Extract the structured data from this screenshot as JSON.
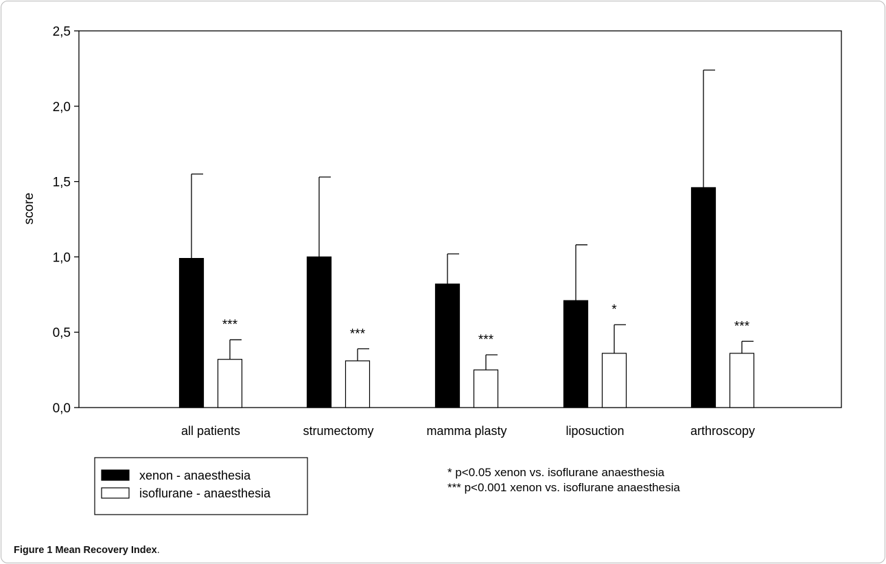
{
  "figure": {
    "caption_label": "Figure 1",
    "caption_title": "Mean Recovery Index",
    "caption_end": "."
  },
  "chart_data": {
    "type": "bar",
    "title": "",
    "xlabel": "",
    "ylabel": "score",
    "ylim": [
      0,
      2.5
    ],
    "yticks": [
      "0,0",
      "0,5",
      "1,0",
      "1,5",
      "2,0",
      "2,5"
    ],
    "categories": [
      "all patients",
      "strumectomy",
      "mamma plasty",
      "liposuction",
      "arthroscopy"
    ],
    "series": [
      {
        "name": "xenon - anaesthesia",
        "color": "#000000",
        "values": [
          0.99,
          1.0,
          0.82,
          0.71,
          1.46
        ],
        "error_upper": [
          1.55,
          1.53,
          1.02,
          1.08,
          2.24
        ]
      },
      {
        "name": "isoflurane - anaesthesia",
        "color": "#ffffff",
        "values": [
          0.32,
          0.31,
          0.25,
          0.36,
          0.36
        ],
        "error_upper": [
          0.45,
          0.39,
          0.35,
          0.55,
          0.44
        ]
      }
    ],
    "significance_marks": [
      "***",
      "***",
      "***",
      "*",
      "***"
    ],
    "legend_placement": "bottom-left",
    "notes": [
      {
        "symbol": "*",
        "text": "p<0.05   xenon vs. isoflurane anaesthesia"
      },
      {
        "symbol": "***",
        "text": "p<0.001 xenon vs. isoflurane anaesthesia"
      }
    ],
    "grid": false
  }
}
